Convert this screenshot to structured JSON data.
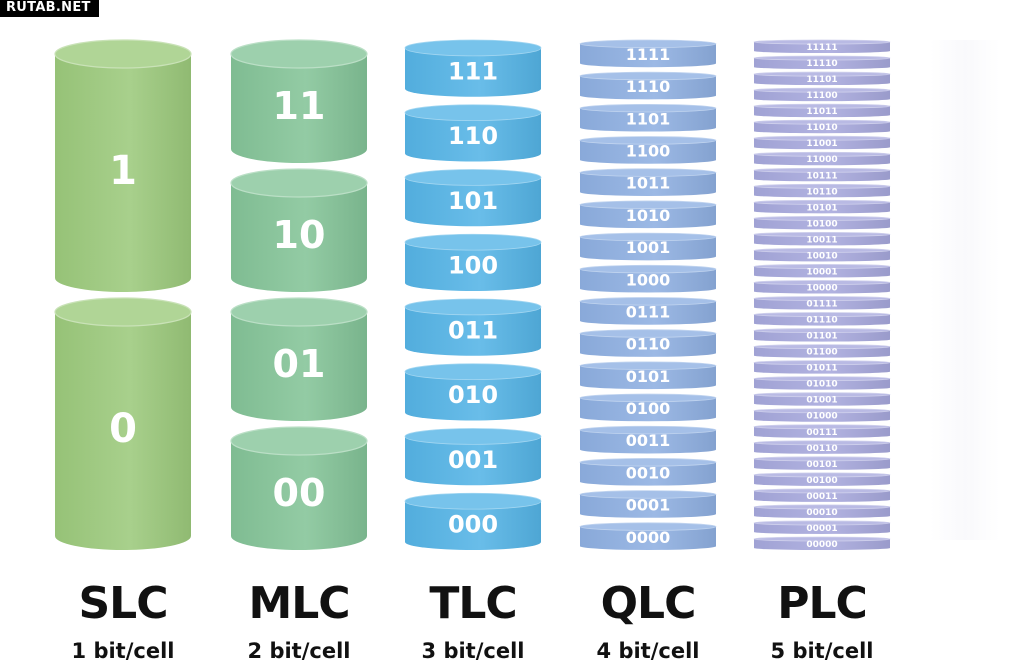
{
  "watermark": "RUTAB.NET",
  "columns": [
    {
      "id": "slc",
      "title": "SLC",
      "subtitle": "1 bit/cell",
      "color": "#9cca7c",
      "values": [
        "1",
        "0"
      ]
    },
    {
      "id": "mlc",
      "title": "MLC",
      "subtitle": "2 bit/cell",
      "color": "#84c498",
      "values": [
        "11",
        "10",
        "01",
        "00"
      ]
    },
    {
      "id": "tlc",
      "title": "TLC",
      "subtitle": "3 bit/cell",
      "color": "#55b4e6",
      "values": [
        "111",
        "110",
        "101",
        "100",
        "011",
        "010",
        "001",
        "000"
      ]
    },
    {
      "id": "qlc",
      "title": "QLC",
      "subtitle": "4 bit/cell",
      "color": "#8fb0e2",
      "values": [
        "1111",
        "1110",
        "1101",
        "1100",
        "1011",
        "1010",
        "1001",
        "1000",
        "0111",
        "0110",
        "0101",
        "0100",
        "0011",
        "0010",
        "0001",
        "0000"
      ]
    },
    {
      "id": "plc",
      "title": "PLC",
      "subtitle": "5 bit/cell",
      "color": "#a7a9dd",
      "values": [
        "11111",
        "11110",
        "11101",
        "11100",
        "11011",
        "11010",
        "11001",
        "11000",
        "10111",
        "10110",
        "10101",
        "10100",
        "10011",
        "10010",
        "10001",
        "10000",
        "01111",
        "01110",
        "01101",
        "01100",
        "01011",
        "01010",
        "01001",
        "01000",
        "00111",
        "00110",
        "00101",
        "00100",
        "00011",
        "00010",
        "00001",
        "00000"
      ]
    }
  ]
}
